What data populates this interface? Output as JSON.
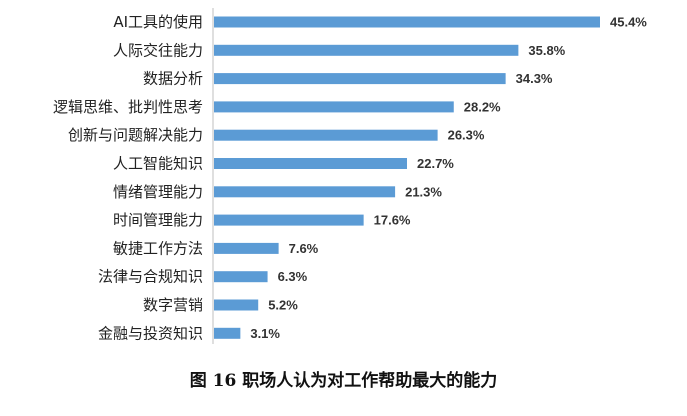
{
  "caption": "图 16  职场人认为对工作帮助最大的能力",
  "chart_data": {
    "type": "bar",
    "orientation": "horizontal",
    "title": "图 16  职场人认为对工作帮助最大的能力",
    "categories": [
      "AI工具的使用",
      "人际交往能力",
      "数据分析",
      "逻辑思维、批判性思考",
      "创新与问题解决能力",
      "人工智能知识",
      "情绪管理能力",
      "时间管理能力",
      "敏捷工作方法",
      "法律与合规知识",
      "数字营销",
      "金融与投资知识"
    ],
    "values": [
      45.4,
      35.8,
      34.3,
      28.2,
      26.3,
      22.7,
      21.3,
      17.6,
      7.6,
      6.3,
      5.2,
      3.1
    ],
    "value_labels": [
      "45.4%",
      "35.8%",
      "34.3%",
      "28.2%",
      "26.3%",
      "22.7%",
      "21.3%",
      "17.6%",
      "7.6%",
      "6.3%",
      "5.2%",
      "3.1%"
    ],
    "xlim": [
      0,
      50
    ],
    "grid": false,
    "legend": "none",
    "bar_color": "#5B9BD5",
    "axis_color": "#BFBFBF"
  }
}
